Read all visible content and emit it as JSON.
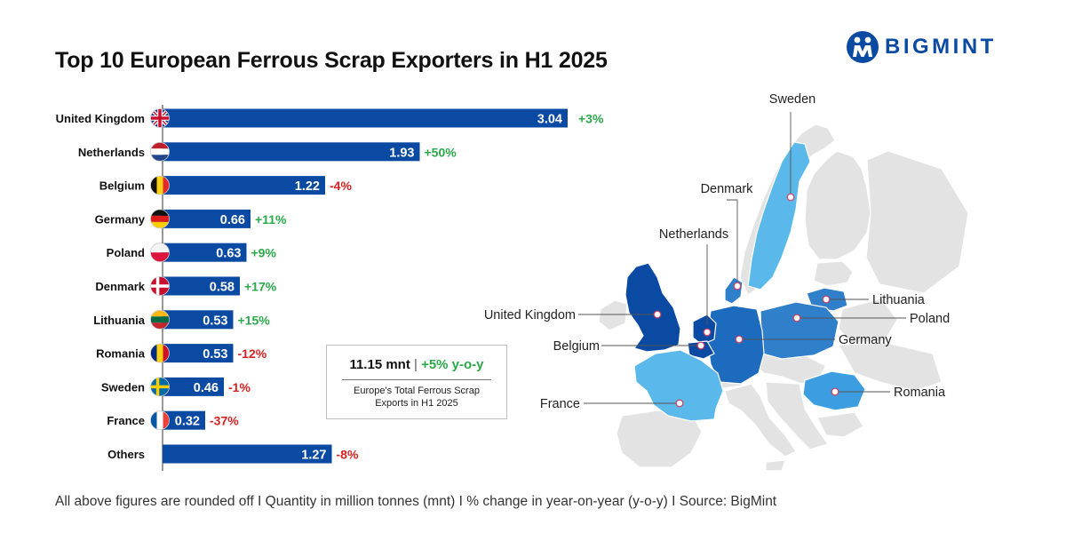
{
  "title": "Top 10 European Ferrous Scrap Exporters in H1 2025",
  "brand": {
    "name": "BIGMINT",
    "color": "#0a4aa3"
  },
  "colors": {
    "bar": "#0a4aa3",
    "positive": "#2aa84a",
    "negative": "#d62222"
  },
  "chart_data": {
    "type": "bar",
    "orientation": "horizontal",
    "unit": "mnt",
    "categories": [
      "United Kingdom",
      "Netherlands",
      "Belgium",
      "Germany",
      "Poland",
      "Denmark",
      "Lithuania",
      "Romania",
      "Sweden",
      "France",
      "Others"
    ],
    "values": [
      3.04,
      1.93,
      1.22,
      0.66,
      0.63,
      0.58,
      0.53,
      0.53,
      0.46,
      0.32,
      1.27
    ],
    "value_labels": [
      "3.04",
      "1.93",
      "1.22",
      "0.66",
      "0.63",
      "0.58",
      "0.53",
      "0.53",
      "0.46",
      "0.32",
      "1.27"
    ],
    "yoy_change": [
      "+3%",
      "+50%",
      "-4%",
      "+11%",
      "+9%",
      "+17%",
      "+15%",
      "-12%",
      "-1%",
      "-37%",
      "-8%"
    ],
    "flags": [
      "uk-flag-icon",
      "netherlands-flag-icon",
      "belgium-flag-icon",
      "germany-flag-icon",
      "poland-flag-icon",
      "denmark-flag-icon",
      "lithuania-flag-icon",
      "romania-flag-icon",
      "sweden-flag-icon",
      "france-flag-icon",
      ""
    ],
    "xlim": [
      0,
      3.3
    ],
    "grid": false,
    "legend": "none"
  },
  "summary": {
    "total": "11.15 mnt",
    "separator": "|",
    "change": "+5% y-o-y",
    "caption_line1": "Europe's Total Ferrous Scrap",
    "caption_line2": "Exports in H1 2025"
  },
  "map": {
    "labels": [
      "Sweden",
      "Denmark",
      "Netherlands",
      "Lithuania",
      "Poland",
      "United Kingdom",
      "Germany",
      "Belgium",
      "France",
      "Romania"
    ]
  },
  "footer": "All above figures are rounded off  I  Quantity in million tonnes (mnt)  I  % change in year-on-year (y-o-y)  I  Source: BigMint"
}
